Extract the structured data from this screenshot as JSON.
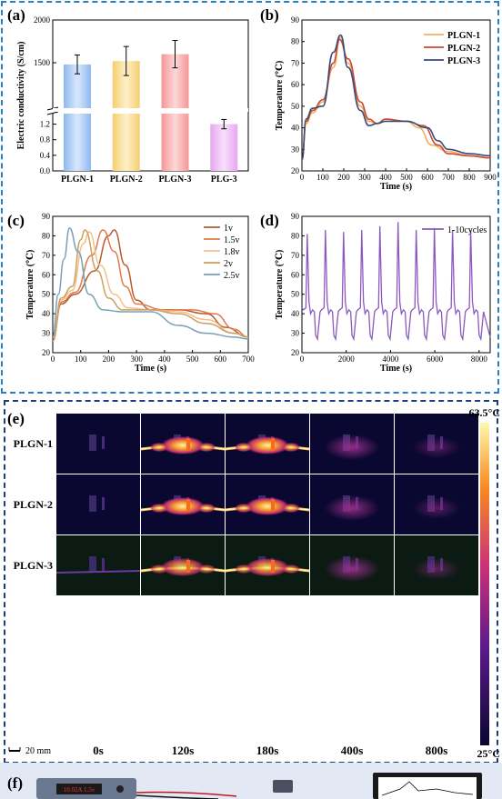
{
  "panels": {
    "a": "(a)",
    "b": "(b)",
    "c": "(c)",
    "d": "(d)",
    "e": "(e)",
    "f": "(f)"
  },
  "colors": {
    "plgn1": "#f0b060",
    "plgn2": "#c84a30",
    "plgn3": "#3a4a7a",
    "v1": "#b85a30",
    "v15": "#e07a4a",
    "v18": "#f3c08a",
    "v2": "#c8a060",
    "v25": "#7aa0b8",
    "cycles": "#8a5ac0",
    "frame_top": "#2a7fc0",
    "frame_mid": "#1c3d7a",
    "panel_f_bg": "#e3e9f4"
  },
  "chart_data": [
    {
      "id": "a",
      "type": "bar",
      "ylabel": "Electric conductivity (S/cm)",
      "categories": [
        "PLGN-1",
        "PLGN-2",
        "PLGN-3",
        "PLG-3"
      ],
      "values": [
        1480,
        1520,
        1600,
        1.2
      ],
      "errors": [
        110,
        170,
        160,
        0.12
      ],
      "bar_colors": [
        "#a8c8f0",
        "#f8dc90",
        "#f6a8a8",
        "#eab8f0"
      ],
      "upper_ticks": [
        "1500",
        "2000"
      ],
      "lower_ticks": [
        "0.0",
        "0.4",
        "0.8",
        "1.2"
      ]
    },
    {
      "id": "b",
      "type": "line",
      "xlabel": "Time (s)",
      "ylabel": "Temperature (℃)",
      "xlim": [
        0,
        900
      ],
      "ylim": [
        20,
        90
      ],
      "xticks": [
        "0",
        "100",
        "200",
        "300",
        "400",
        "500",
        "600",
        "700",
        "800",
        "900"
      ],
      "yticks": [
        "20",
        "30",
        "40",
        "50",
        "60",
        "70",
        "80",
        "90"
      ],
      "legend": [
        "PLGN-1",
        "PLGN-2",
        "PLGN-3"
      ],
      "series": [
        {
          "name": "PLGN-1",
          "x": [
            0,
            20,
            50,
            100,
            150,
            185,
            220,
            280,
            320,
            360,
            400,
            500,
            560,
            620,
            700,
            800,
            900
          ],
          "y": [
            25,
            42,
            47,
            52,
            68,
            82,
            70,
            50,
            43,
            42,
            44,
            43,
            40,
            32,
            29,
            27,
            26
          ]
        },
        {
          "name": "PLGN-2",
          "x": [
            0,
            20,
            50,
            100,
            150,
            180,
            220,
            280,
            320,
            360,
            400,
            500,
            580,
            650,
            700,
            800,
            900
          ],
          "y": [
            25,
            43,
            48,
            53,
            70,
            81,
            72,
            52,
            44,
            42,
            44,
            43,
            41,
            32,
            28,
            27,
            26
          ]
        },
        {
          "name": "PLGN-3",
          "x": [
            0,
            20,
            50,
            100,
            150,
            185,
            220,
            280,
            320,
            360,
            400,
            500,
            600,
            650,
            700,
            800,
            900
          ],
          "y": [
            25,
            44,
            49,
            50,
            75,
            83,
            68,
            48,
            41,
            42,
            43,
            43,
            40,
            34,
            30,
            28,
            27
          ]
        }
      ]
    },
    {
      "id": "c",
      "type": "line",
      "xlabel": "Time (s)",
      "ylabel": "Temperature (℃)",
      "xlim": [
        0,
        700
      ],
      "ylim": [
        20,
        90
      ],
      "xticks": [
        "0",
        "100",
        "200",
        "300",
        "400",
        "500",
        "600",
        "700"
      ],
      "yticks": [
        "20",
        "30",
        "40",
        "50",
        "60",
        "70",
        "80",
        "90"
      ],
      "legend": [
        "1v",
        "1.5v",
        "1.8v",
        "2v",
        "2.5v"
      ],
      "series": [
        {
          "name": "1v",
          "x": [
            0,
            30,
            80,
            150,
            200,
            220,
            260,
            300,
            350,
            450,
            550,
            620,
            700
          ],
          "y": [
            26,
            45,
            50,
            62,
            80,
            83,
            65,
            47,
            42,
            42,
            40,
            33,
            28
          ]
        },
        {
          "name": "1.5v",
          "x": [
            0,
            30,
            80,
            140,
            180,
            220,
            260,
            300,
            400,
            500,
            580,
            650,
            700
          ],
          "y": [
            26,
            46,
            51,
            70,
            83,
            72,
            54,
            45,
            42,
            42,
            40,
            32,
            28
          ]
        },
        {
          "name": "1.8v",
          "x": [
            0,
            30,
            70,
            110,
            130,
            170,
            220,
            270,
            350,
            450,
            550,
            650,
            700
          ],
          "y": [
            26,
            47,
            52,
            76,
            82,
            65,
            50,
            43,
            42,
            41,
            37,
            30,
            28
          ]
        },
        {
          "name": "2v",
          "x": [
            0,
            30,
            70,
            100,
            115,
            160,
            200,
            250,
            350,
            450,
            550,
            650,
            700
          ],
          "y": [
            26,
            48,
            54,
            78,
            83,
            62,
            48,
            42,
            42,
            40,
            35,
            30,
            28
          ]
        },
        {
          "name": "2.5v",
          "x": [
            0,
            20,
            40,
            60,
            90,
            130,
            180,
            250,
            350,
            450,
            550,
            650,
            700
          ],
          "y": [
            28,
            50,
            68,
            84,
            72,
            50,
            42,
            41,
            41,
            34,
            30,
            28,
            27
          ]
        }
      ]
    },
    {
      "id": "d",
      "type": "line",
      "xlabel": "Time (s)",
      "ylabel": "Temperature (℃)",
      "xlim": [
        0,
        8500
      ],
      "ylim": [
        20,
        90
      ],
      "xticks": [
        "0",
        "2000",
        "4000",
        "6000",
        "8000"
      ],
      "yticks": [
        "20",
        "30",
        "40",
        "50",
        "60",
        "70",
        "80",
        "90"
      ],
      "legend": [
        "1-10cycles"
      ],
      "series": [
        {
          "name": "1-10cycles",
          "peaks": [
            81,
            83,
            82,
            83,
            85,
            87,
            83,
            84,
            83,
            83
          ]
        }
      ]
    }
  ],
  "thermal": {
    "rows": [
      "PLGN-1",
      "PLGN-2",
      "PLGN-3"
    ],
    "cols": [
      "0s",
      "120s",
      "180s",
      "400s",
      "800s"
    ],
    "scale_max": "63.5°C",
    "scale_min": "25°C",
    "scale_bar": "20 mm"
  },
  "power_supply": {
    "display": "10.02A 1.5v"
  }
}
